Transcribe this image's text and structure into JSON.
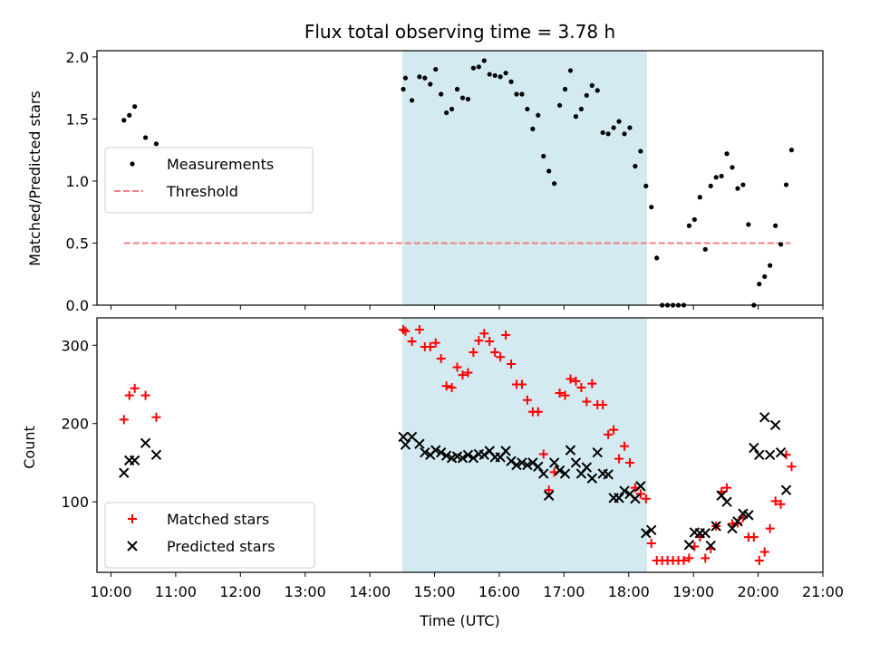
{
  "chart_data": [
    {
      "type": "scatter",
      "title": "Flux total observing time = 3.78 h",
      "xlabel": "",
      "ylabel": "Matched/Predicted stars",
      "ylim": [
        0,
        2.05
      ],
      "yticks": [
        "0.0",
        "0.5",
        "1.0",
        "1.5",
        "2.0"
      ],
      "shaded_interval": [
        "14:30",
        "18:17"
      ],
      "shade_color": "#d3eaf1",
      "threshold": {
        "name": "Threshold",
        "value": 0.5,
        "x": [
          "10:12",
          "20:30"
        ],
        "color": "#f08080"
      },
      "legend": {
        "placement": "center-left",
        "entries": [
          "Measurements",
          "Threshold"
        ]
      },
      "series": [
        {
          "name": "Measurements",
          "color": "#000000",
          "marker": "dot",
          "points": [
            [
              "10:12",
              1.49
            ],
            [
              "10:17",
              1.53
            ],
            [
              "10:22",
              1.6
            ],
            [
              "10:32",
              1.35
            ],
            [
              "10:42",
              1.3
            ],
            [
              "14:31",
              1.74
            ],
            [
              "14:33",
              1.83
            ],
            [
              "14:39",
              1.65
            ],
            [
              "14:46",
              1.84
            ],
            [
              "14:51",
              1.83
            ],
            [
              "14:56",
              1.78
            ],
            [
              "15:01",
              1.9
            ],
            [
              "15:06",
              1.7
            ],
            [
              "15:11",
              1.55
            ],
            [
              "15:16",
              1.58
            ],
            [
              "15:21",
              1.74
            ],
            [
              "15:26",
              1.67
            ],
            [
              "15:31",
              1.66
            ],
            [
              "15:36",
              1.91
            ],
            [
              "15:41",
              1.92
            ],
            [
              "15:46",
              1.97
            ],
            [
              "15:51",
              1.86
            ],
            [
              "15:56",
              1.85
            ],
            [
              "16:01",
              1.84
            ],
            [
              "16:06",
              1.87
            ],
            [
              "16:11",
              1.8
            ],
            [
              "16:16",
              1.7
            ],
            [
              "16:21",
              1.7
            ],
            [
              "16:26",
              1.58
            ],
            [
              "16:31",
              1.42
            ],
            [
              "16:36",
              1.53
            ],
            [
              "16:41",
              1.2
            ],
            [
              "16:46",
              1.08
            ],
            [
              "16:51",
              0.98
            ],
            [
              "16:56",
              1.61
            ],
            [
              "17:01",
              1.74
            ],
            [
              "17:06",
              1.89
            ],
            [
              "17:11",
              1.52
            ],
            [
              "17:16",
              1.58
            ],
            [
              "17:21",
              1.69
            ],
            [
              "17:26",
              1.77
            ],
            [
              "17:31",
              1.73
            ],
            [
              "17:36",
              1.39
            ],
            [
              "17:41",
              1.38
            ],
            [
              "17:46",
              1.43
            ],
            [
              "17:51",
              1.48
            ],
            [
              "17:56",
              1.38
            ],
            [
              "18:01",
              1.43
            ],
            [
              "18:06",
              1.12
            ],
            [
              "18:11",
              1.24
            ],
            [
              "18:16",
              0.96
            ],
            [
              "18:21",
              0.79
            ],
            [
              "18:26",
              0.38
            ],
            [
              "18:31",
              0.0
            ],
            [
              "18:36",
              0.0
            ],
            [
              "18:41",
              0.0
            ],
            [
              "18:46",
              0.0
            ],
            [
              "18:51",
              0.0
            ],
            [
              "18:56",
              0.64
            ],
            [
              "19:01",
              0.69
            ],
            [
              "19:06",
              0.87
            ],
            [
              "19:11",
              0.45
            ],
            [
              "19:16",
              0.96
            ],
            [
              "19:21",
              1.03
            ],
            [
              "19:26",
              1.04
            ],
            [
              "19:31",
              1.22
            ],
            [
              "19:36",
              1.11
            ],
            [
              "19:41",
              0.94
            ],
            [
              "19:46",
              0.97
            ],
            [
              "19:51",
              0.65
            ],
            [
              "19:56",
              0.0
            ],
            [
              "20:01",
              0.17
            ],
            [
              "20:06",
              0.23
            ],
            [
              "20:11",
              0.32
            ],
            [
              "20:16",
              0.64
            ],
            [
              "20:21",
              0.49
            ],
            [
              "20:26",
              0.97
            ],
            [
              "20:31",
              1.25
            ]
          ]
        }
      ]
    },
    {
      "type": "scatter",
      "xlabel": "Time (UTC)",
      "ylabel": "Count",
      "ylim": [
        10,
        335
      ],
      "yticks": [
        "100",
        "200",
        "300"
      ],
      "xlim": [
        "09:47",
        "21:00"
      ],
      "xticks": [
        "10:00",
        "11:00",
        "12:00",
        "13:00",
        "14:00",
        "15:00",
        "16:00",
        "17:00",
        "18:00",
        "19:00",
        "20:00",
        "21:00"
      ],
      "shaded_interval": [
        "14:30",
        "18:17"
      ],
      "legend": {
        "placement": "lower-left",
        "entries": [
          "Matched stars",
          "Predicted stars"
        ]
      },
      "series": [
        {
          "name": "Matched stars",
          "color": "#ff0000",
          "marker": "plus",
          "points": [
            [
              "10:12",
              205
            ],
            [
              "10:17",
              236
            ],
            [
              "10:22",
              245
            ],
            [
              "10:32",
              236
            ],
            [
              "10:42",
              208
            ],
            [
              "14:31",
              320
            ],
            [
              "14:33",
              318
            ],
            [
              "14:39",
              305
            ],
            [
              "14:46",
              320
            ],
            [
              "14:51",
              298
            ],
            [
              "14:56",
              298
            ],
            [
              "15:01",
              303
            ],
            [
              "15:06",
              283
            ],
            [
              "15:11",
              248
            ],
            [
              "15:16",
              246
            ],
            [
              "15:21",
              272
            ],
            [
              "15:26",
              262
            ],
            [
              "15:31",
              265
            ],
            [
              "15:36",
              291
            ],
            [
              "15:41",
              306
            ],
            [
              "15:46",
              315
            ],
            [
              "15:51",
              305
            ],
            [
              "15:56",
              291
            ],
            [
              "16:01",
              285
            ],
            [
              "16:06",
              313
            ],
            [
              "16:11",
              276
            ],
            [
              "16:16",
              250
            ],
            [
              "16:21",
              250
            ],
            [
              "16:26",
              230
            ],
            [
              "16:31",
              215
            ],
            [
              "16:36",
              215
            ],
            [
              "16:41",
              161
            ],
            [
              "16:46",
              115
            ],
            [
              "16:51",
              138
            ],
            [
              "16:56",
              239
            ],
            [
              "17:01",
              236
            ],
            [
              "17:06",
              257
            ],
            [
              "17:11",
              254
            ],
            [
              "17:16",
              246
            ],
            [
              "17:21",
              228
            ],
            [
              "17:26",
              251
            ],
            [
              "17:31",
              224
            ],
            [
              "17:36",
              224
            ],
            [
              "17:41",
              186
            ],
            [
              "17:46",
              192
            ],
            [
              "17:51",
              155
            ],
            [
              "17:56",
              171
            ],
            [
              "18:01",
              150
            ],
            [
              "18:06",
              118
            ],
            [
              "18:11",
              110
            ],
            [
              "18:16",
              104
            ],
            [
              "18:21",
              47
            ],
            [
              "18:26",
              25
            ],
            [
              "18:31",
              25
            ],
            [
              "18:36",
              25
            ],
            [
              "18:41",
              25
            ],
            [
              "18:46",
              25
            ],
            [
              "18:51",
              25
            ],
            [
              "18:56",
              28
            ],
            [
              "19:01",
              43
            ],
            [
              "19:06",
              55
            ],
            [
              "19:11",
              28
            ],
            [
              "19:16",
              40
            ],
            [
              "19:21",
              69
            ],
            [
              "19:26",
              113
            ],
            [
              "19:31",
              118
            ],
            [
              "19:36",
              72
            ],
            [
              "19:41",
              73
            ],
            [
              "19:46",
              80
            ],
            [
              "19:51",
              55
            ],
            [
              "19:56",
              55
            ],
            [
              "20:01",
              25
            ],
            [
              "20:06",
              36
            ],
            [
              "20:11",
              66
            ],
            [
              "20:16",
              101
            ],
            [
              "20:21",
              97
            ],
            [
              "20:26",
              160
            ],
            [
              "20:31",
              145
            ]
          ]
        },
        {
          "name": "Predicted stars",
          "color": "#000000",
          "marker": "x",
          "points": [
            [
              "10:12",
              137
            ],
            [
              "10:17",
              153
            ],
            [
              "10:22",
              153
            ],
            [
              "10:32",
              175
            ],
            [
              "10:42",
              160
            ],
            [
              "14:31",
              183
            ],
            [
              "14:33",
              173
            ],
            [
              "14:39",
              183
            ],
            [
              "14:46",
              174
            ],
            [
              "14:51",
              163
            ],
            [
              "14:56",
              160
            ],
            [
              "15:01",
              166
            ],
            [
              "15:06",
              163
            ],
            [
              "15:11",
              159
            ],
            [
              "15:16",
              156
            ],
            [
              "15:21",
              158
            ],
            [
              "15:26",
              156
            ],
            [
              "15:31",
              160
            ],
            [
              "15:36",
              156
            ],
            [
              "15:41",
              161
            ],
            [
              "15:46",
              160
            ],
            [
              "15:51",
              165
            ],
            [
              "15:56",
              157
            ],
            [
              "16:01",
              157
            ],
            [
              "16:06",
              165
            ],
            [
              "16:11",
              152
            ],
            [
              "16:16",
              147
            ],
            [
              "16:21",
              150
            ],
            [
              "16:26",
              147
            ],
            [
              "16:31",
              150
            ],
            [
              "16:36",
              145
            ],
            [
              "16:41",
              136
            ],
            [
              "16:46",
              108
            ],
            [
              "16:51",
              150
            ],
            [
              "16:56",
              140
            ],
            [
              "17:01",
              136
            ],
            [
              "17:06",
              166
            ],
            [
              "17:11",
              150
            ],
            [
              "17:16",
              136
            ],
            [
              "17:21",
              144
            ],
            [
              "17:26",
              130
            ],
            [
              "17:31",
              163
            ],
            [
              "17:36",
              136
            ],
            [
              "17:41",
              135
            ],
            [
              "17:46",
              105
            ],
            [
              "17:51",
              105
            ],
            [
              "17:56",
              114
            ],
            [
              "18:01",
              110
            ],
            [
              "18:06",
              104
            ],
            [
              "18:11",
              120
            ],
            [
              "18:16",
              60
            ],
            [
              "18:21",
              64
            ],
            [
              "18:56",
              45
            ],
            [
              "19:01",
              61
            ],
            [
              "19:06",
              60
            ],
            [
              "19:11",
              60
            ],
            [
              "19:16",
              44
            ],
            [
              "19:21",
              69
            ],
            [
              "19:26",
              108
            ],
            [
              "19:31",
              100
            ],
            [
              "19:36",
              66
            ],
            [
              "19:41",
              75
            ],
            [
              "19:46",
              85
            ],
            [
              "19:51",
              83
            ],
            [
              "19:56",
              169
            ],
            [
              "20:01",
              160
            ],
            [
              "20:06",
              208
            ],
            [
              "20:11",
              160
            ],
            [
              "20:16",
              198
            ],
            [
              "20:21",
              163
            ],
            [
              "20:26",
              115
            ]
          ]
        }
      ]
    }
  ]
}
